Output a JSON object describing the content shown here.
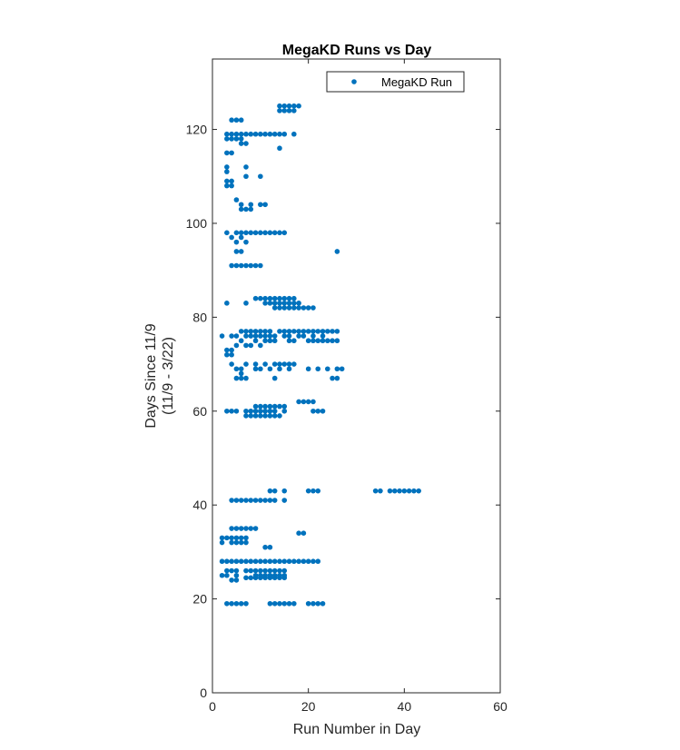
{
  "chart_data": {
    "type": "scatter",
    "title": "MegaKD Runs vs Day",
    "xlabel": "Run Number in Day",
    "ylabel": [
      "Days Since 11/9",
      "(11/9 - 3/22)"
    ],
    "xlim": [
      0,
      60
    ],
    "ylim": [
      0,
      135
    ],
    "xticks": [
      0,
      20,
      40,
      60
    ],
    "yticks": [
      0,
      20,
      40,
      60,
      80,
      100,
      120
    ],
    "grid": false,
    "legend_position": "top-right",
    "series": [
      {
        "name": "MegaKD Run",
        "color": "#0072bd",
        "marker": "filled-circle",
        "rows": [
          {
            "y": 19,
            "x": [
              3,
              4,
              5,
              6,
              7,
              12,
              13,
              14,
              15,
              16,
              17,
              20,
              21,
              22,
              23
            ]
          },
          {
            "y": 24,
            "x": [
              4,
              5
            ]
          },
          {
            "y": 24.5,
            "x": [
              7,
              8,
              9,
              10,
              11,
              12,
              13,
              14,
              15
            ]
          },
          {
            "y": 25,
            "x": [
              2,
              3,
              5,
              9,
              10,
              11,
              12,
              13,
              14,
              15
            ]
          },
          {
            "y": 26,
            "x": [
              3,
              4,
              5,
              7,
              8,
              9,
              10,
              11,
              12,
              13,
              14,
              15
            ]
          },
          {
            "y": 28,
            "x": [
              2,
              3,
              4,
              5,
              6,
              7,
              8,
              9,
              10,
              11,
              12,
              13,
              14,
              15,
              16,
              17,
              18,
              19,
              20,
              21,
              22
            ]
          },
          {
            "y": 31,
            "x": [
              11,
              12
            ]
          },
          {
            "y": 32,
            "x": [
              2,
              4,
              5,
              6,
              7
            ]
          },
          {
            "y": 33,
            "x": [
              2,
              3,
              4,
              5,
              6,
              7
            ]
          },
          {
            "y": 34,
            "x": [
              18,
              19
            ]
          },
          {
            "y": 35,
            "x": [
              4,
              5,
              6,
              7,
              8,
              9
            ]
          },
          {
            "y": 41,
            "x": [
              4,
              5,
              6,
              7,
              8,
              9,
              10,
              11,
              12,
              13,
              15
            ]
          },
          {
            "y": 43,
            "x": [
              12,
              13,
              15,
              20,
              21,
              22,
              34,
              35,
              37,
              38,
              39,
              40,
              41,
              42,
              43
            ]
          },
          {
            "y": 59,
            "x": [
              7,
              8,
              9,
              10,
              11,
              12,
              13,
              14
            ]
          },
          {
            "y": 60,
            "x": [
              3,
              4,
              5,
              7,
              8,
              9,
              10,
              11,
              12,
              13,
              15,
              21,
              22,
              23
            ]
          },
          {
            "y": 61,
            "x": [
              9,
              10,
              11,
              12,
              13,
              14,
              15
            ]
          },
          {
            "y": 62,
            "x": [
              18,
              19,
              20,
              21
            ]
          },
          {
            "y": 67,
            "x": [
              5,
              6,
              7,
              13,
              25,
              26
            ]
          },
          {
            "y": 68,
            "x": [
              6
            ]
          },
          {
            "y": 69,
            "x": [
              5,
              6,
              9,
              10,
              12,
              14,
              16,
              20,
              22,
              24,
              26,
              27
            ]
          },
          {
            "y": 70,
            "x": [
              4,
              7,
              9,
              11,
              13,
              14,
              15,
              16,
              17
            ]
          },
          {
            "y": 72,
            "x": [
              3,
              4
            ]
          },
          {
            "y": 73,
            "x": [
              3,
              4
            ]
          },
          {
            "y": 74,
            "x": [
              5,
              7,
              8,
              10
            ]
          },
          {
            "y": 75,
            "x": [
              6,
              9,
              11,
              12,
              13,
              16,
              17,
              20,
              21,
              22,
              23,
              24,
              25,
              26
            ]
          },
          {
            "y": 76,
            "x": [
              2,
              4,
              5,
              7,
              8,
              9,
              10,
              11,
              12,
              13,
              15,
              16,
              18,
              19,
              21,
              23
            ]
          },
          {
            "y": 77,
            "x": [
              6,
              7,
              8,
              9,
              10,
              11,
              12,
              14,
              15,
              16,
              17,
              18,
              19,
              20,
              21,
              22,
              23,
              24,
              25,
              26
            ]
          },
          {
            "y": 82,
            "x": [
              13,
              14,
              15,
              16,
              17,
              18,
              19,
              20,
              21
            ]
          },
          {
            "y": 83,
            "x": [
              3,
              7,
              11,
              12,
              13,
              14,
              15,
              16,
              17,
              18
            ]
          },
          {
            "y": 84,
            "x": [
              9,
              10,
              11,
              12,
              13,
              14,
              15,
              16,
              17
            ]
          },
          {
            "y": 91,
            "x": [
              4,
              5,
              6,
              7,
              8,
              9,
              10
            ]
          },
          {
            "y": 94,
            "x": [
              5,
              6,
              26
            ]
          },
          {
            "y": 96,
            "x": [
              5,
              7
            ]
          },
          {
            "y": 97,
            "x": [
              4,
              6
            ]
          },
          {
            "y": 98,
            "x": [
              3,
              5,
              6,
              7,
              8,
              9,
              10,
              11,
              12,
              13,
              14,
              15
            ]
          },
          {
            "y": 103,
            "x": [
              6,
              7,
              8
            ]
          },
          {
            "y": 104,
            "x": [
              6,
              8,
              10,
              11
            ]
          },
          {
            "y": 105,
            "x": [
              5
            ]
          },
          {
            "y": 108,
            "x": [
              3,
              4
            ]
          },
          {
            "y": 109,
            "x": [
              3,
              4
            ]
          },
          {
            "y": 110,
            "x": [
              7,
              10
            ]
          },
          {
            "y": 111,
            "x": [
              3
            ]
          },
          {
            "y": 112,
            "x": [
              3,
              7
            ]
          },
          {
            "y": 115,
            "x": [
              3,
              4
            ]
          },
          {
            "y": 116,
            "x": [
              14
            ]
          },
          {
            "y": 117,
            "x": [
              6,
              7
            ]
          },
          {
            "y": 118,
            "x": [
              3,
              4,
              5,
              6
            ]
          },
          {
            "y": 119,
            "x": [
              3,
              4,
              5,
              6,
              7,
              8,
              9,
              10,
              11,
              12,
              13,
              14,
              15,
              17
            ]
          },
          {
            "y": 122,
            "x": [
              4,
              5,
              6
            ]
          },
          {
            "y": 124,
            "x": [
              14,
              15,
              16,
              17
            ]
          },
          {
            "y": 125,
            "x": [
              14,
              15,
              16,
              17,
              18
            ]
          }
        ]
      }
    ]
  }
}
